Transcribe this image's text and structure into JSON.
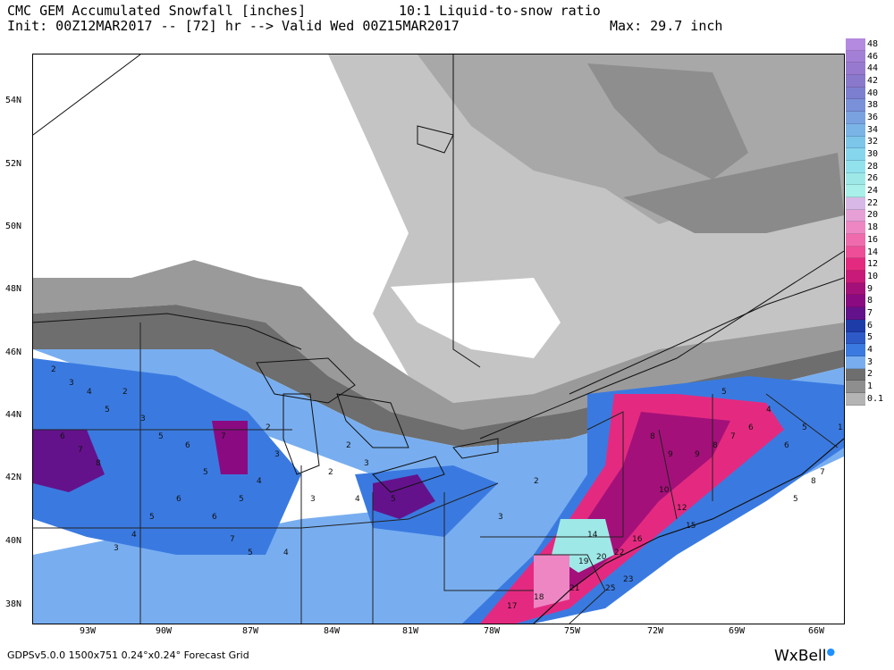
{
  "header": {
    "line1_left": "CMC GEM Accumulated Snowfall [inches]",
    "line1_right": "10:1 Liquid-to-snow ratio",
    "line2_left": "Init: 00Z12MAR2017 -- [72] hr --> Valid Wed 00Z15MAR2017",
    "line2_right": "Max: 29.7 inch"
  },
  "lat_labels": [
    "54N",
    "52N",
    "50N",
    "48N",
    "46N",
    "44N",
    "42N",
    "40N",
    "38N"
  ],
  "lon_labels": [
    "93W",
    "90W",
    "87W",
    "84W",
    "81W",
    "78W",
    "75W",
    "72W",
    "69W",
    "66W"
  ],
  "legend": {
    "levels": [
      "48",
      "46",
      "44",
      "42",
      "40",
      "38",
      "36",
      "34",
      "32",
      "30",
      "28",
      "26",
      "24",
      "22",
      "20",
      "18",
      "16",
      "14",
      "12",
      "10",
      "9",
      "8",
      "7",
      "6",
      "5",
      "4",
      "3",
      "2",
      "1",
      "0.1"
    ],
    "colors": [
      "#b48ae0",
      "#a47fd6",
      "#977ad0",
      "#8a78cc",
      "#7c7fd0",
      "#7a90d9",
      "#7aa2e0",
      "#7ab4e6",
      "#7cc6ea",
      "#86d6ee",
      "#92e2ee",
      "#9ee9e8",
      "#aaf0ea",
      "#d8b8e6",
      "#e6a0d6",
      "#ee86c4",
      "#f06aae",
      "#ee4e98",
      "#e42a80",
      "#c81a78",
      "#a4107a",
      "#8a0a82",
      "#64128c",
      "#1e3ca8",
      "#2e5ac8",
      "#3a7ae0",
      "#78aef0",
      "#6e6e6e",
      "#8e8e8e",
      "#b4b4b4"
    ]
  },
  "footer": {
    "text": "GDPSv5.0.0 1500x751 0.24°x0.24° Forecast Grid"
  },
  "brand": {
    "name": "WxBell"
  },
  "map_labels": [
    {
      "t": "2"
    },
    {
      "t": "3"
    },
    {
      "t": "4"
    },
    {
      "t": "5"
    },
    {
      "t": "6"
    },
    {
      "t": "7"
    },
    {
      "t": "8"
    },
    {
      "t": "2"
    },
    {
      "t": "3"
    },
    {
      "t": "5"
    },
    {
      "t": "6"
    },
    {
      "t": "7"
    },
    {
      "t": "5"
    },
    {
      "t": "6"
    },
    {
      "t": "5"
    },
    {
      "t": "4"
    },
    {
      "t": "3"
    },
    {
      "t": "2"
    },
    {
      "t": "3"
    },
    {
      "t": "4"
    },
    {
      "t": "5"
    },
    {
      "t": "6"
    },
    {
      "t": "7"
    },
    {
      "t": "5"
    },
    {
      "t": "4"
    },
    {
      "t": "3"
    },
    {
      "t": "2"
    },
    {
      "t": "2"
    },
    {
      "t": "3"
    },
    {
      "t": "4"
    },
    {
      "t": "5"
    },
    {
      "t": "8"
    },
    {
      "t": "9"
    },
    {
      "t": "10"
    },
    {
      "t": "12"
    },
    {
      "t": "14"
    },
    {
      "t": "15"
    },
    {
      "t": "16"
    },
    {
      "t": "19"
    },
    {
      "t": "20"
    },
    {
      "t": "22"
    },
    {
      "t": "23"
    },
    {
      "t": "25"
    },
    {
      "t": "21"
    },
    {
      "t": "18"
    },
    {
      "t": "17"
    },
    {
      "t": "9"
    },
    {
      "t": "8"
    },
    {
      "t": "7"
    },
    {
      "t": "6"
    },
    {
      "t": "5"
    },
    {
      "t": "4"
    },
    {
      "t": "6"
    },
    {
      "t": "5"
    },
    {
      "t": "8"
    },
    {
      "t": "7"
    },
    {
      "t": "5"
    },
    {
      "t": "1"
    },
    {
      "t": "2"
    },
    {
      "t": "3"
    }
  ]
}
